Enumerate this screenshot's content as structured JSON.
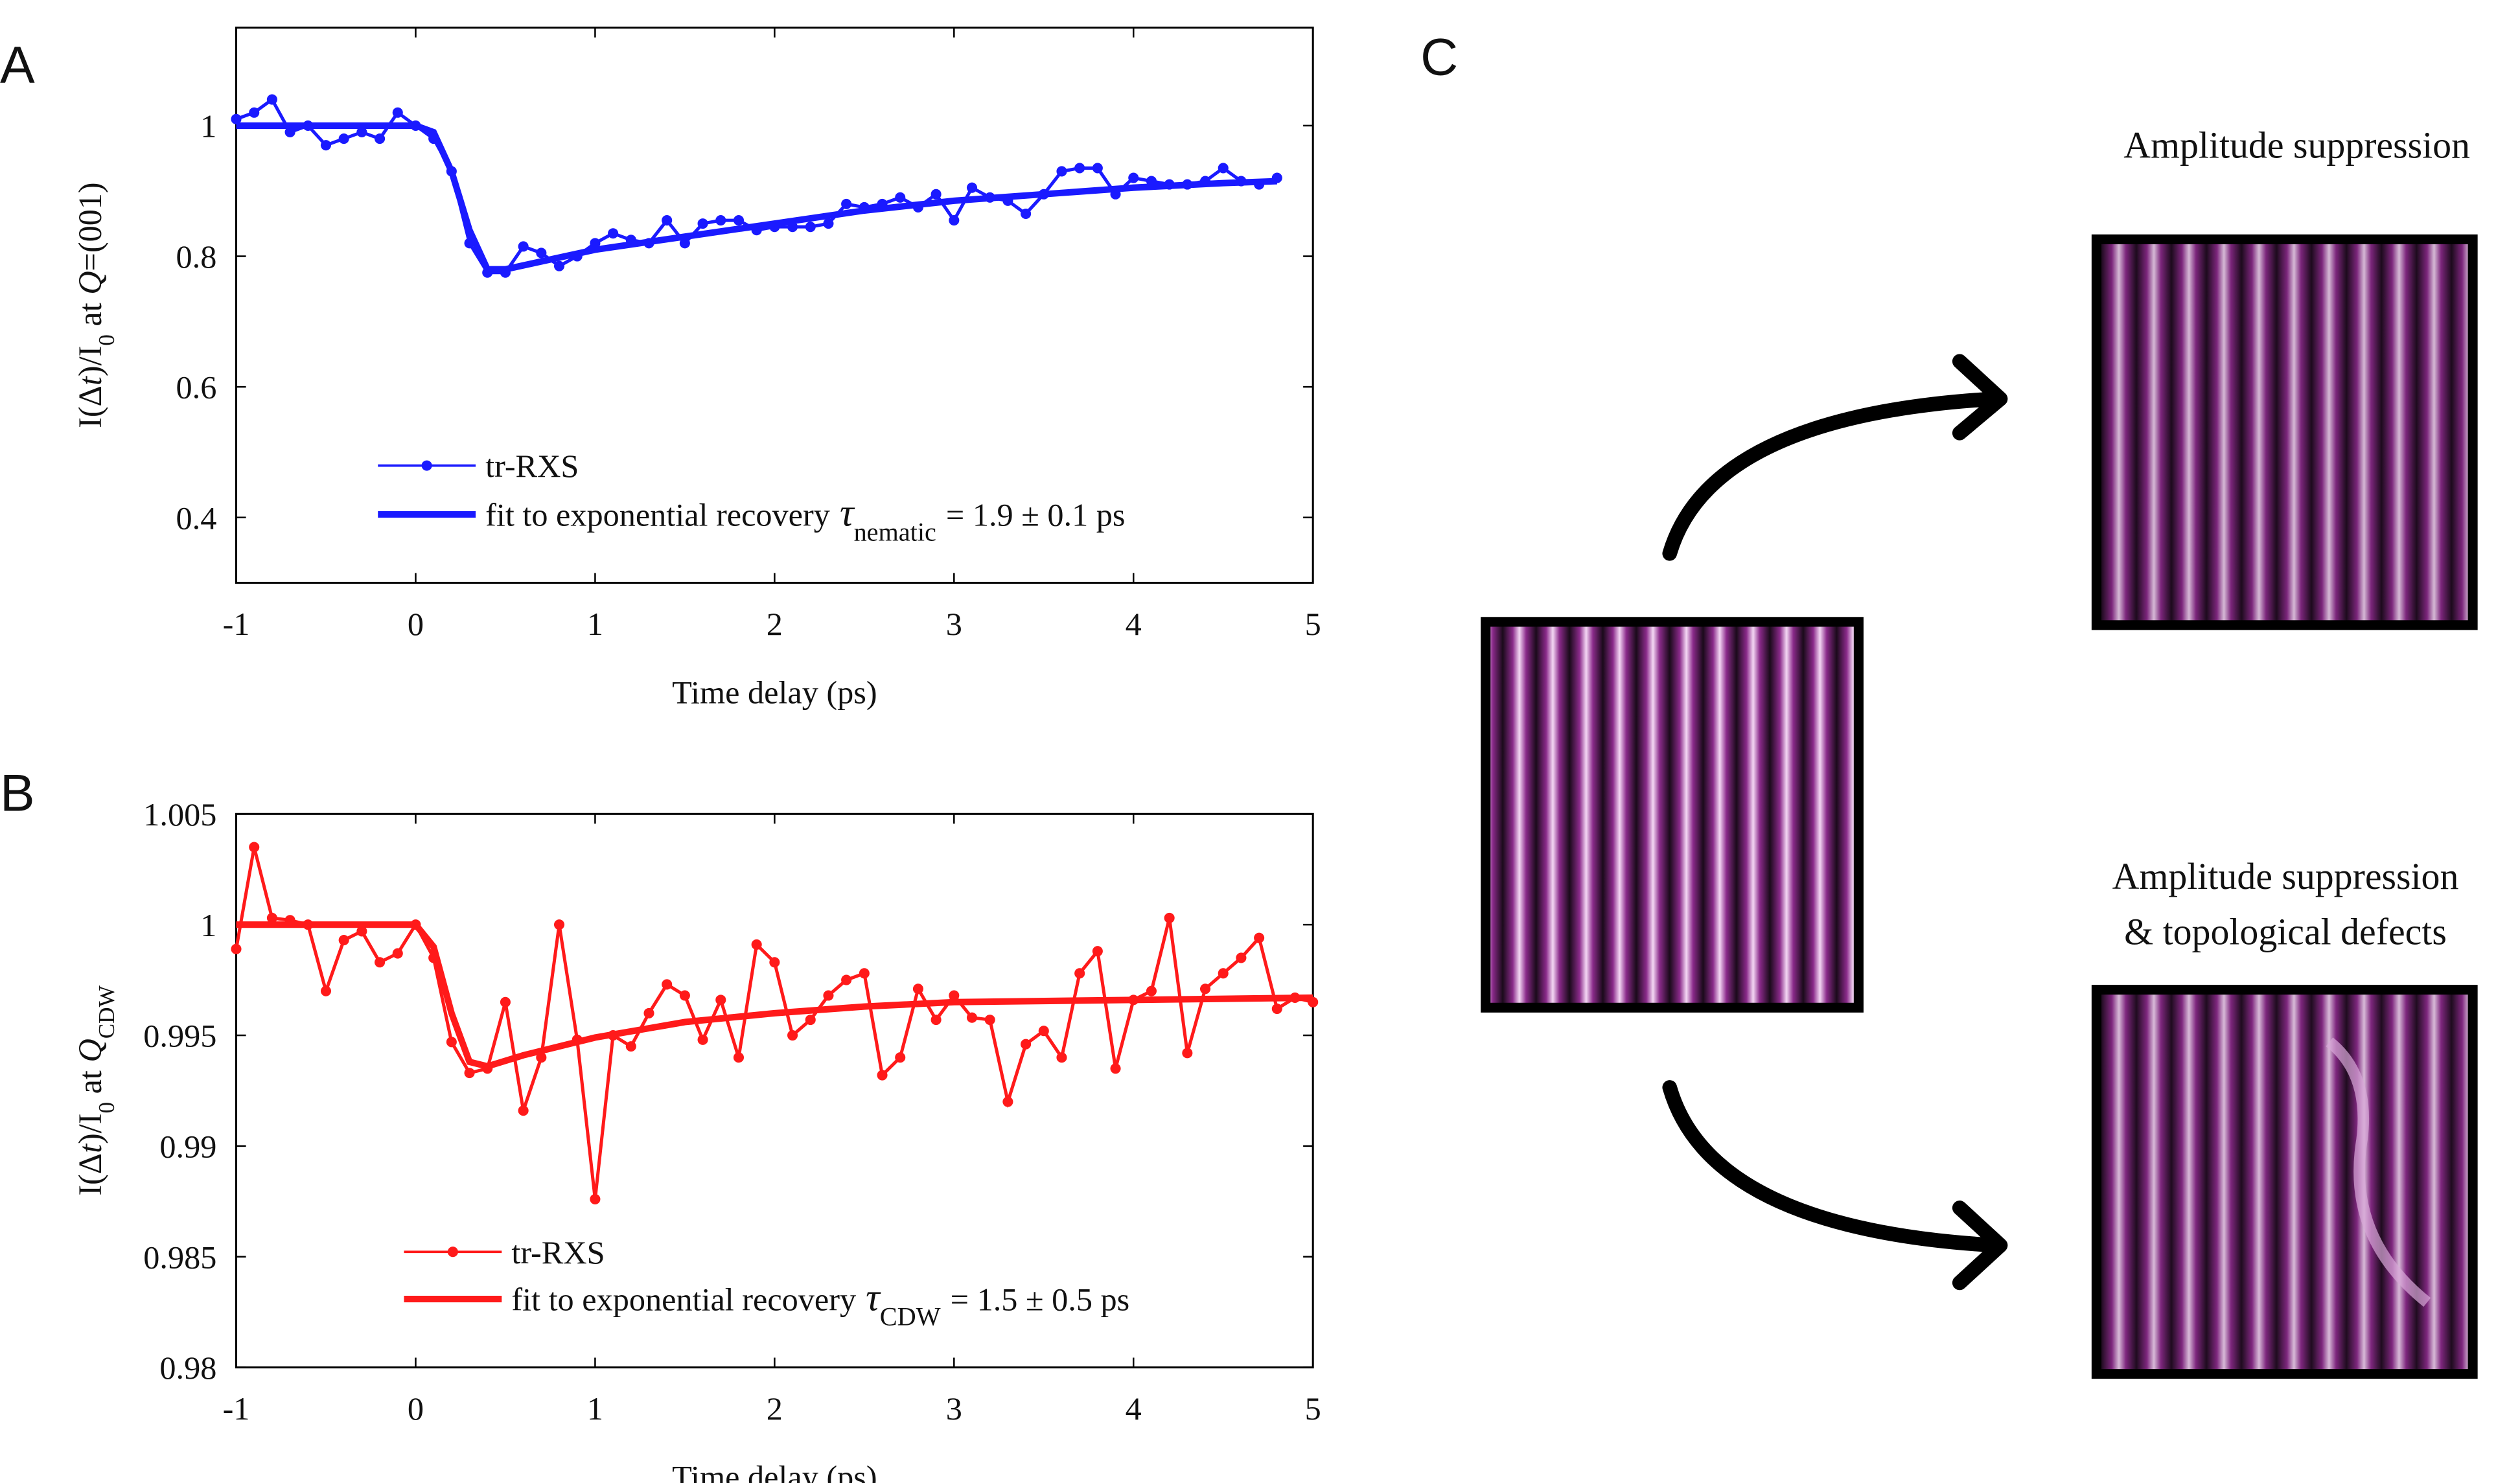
{
  "chart_data": [
    {
      "type": "line",
      "panel": "A",
      "xlabel": "Time delay (ps)",
      "ylabel": {
        "pre": "I(Δ",
        "var": "t",
        "mid": ")/I",
        "sub": "0",
        "at": " at ",
        "q": "Q",
        "post": "=(001)"
      },
      "xlim": [
        -1,
        5
      ],
      "xticks": [
        -1,
        0,
        1,
        2,
        3,
        4,
        5
      ],
      "ylim": [
        0.3,
        1.15
      ],
      "yticks": [
        0.4,
        0.6,
        0.8,
        1
      ],
      "fit_label": {
        "symbol": "τ",
        "subscript": "nematic",
        "value": "= 1.9 ± 0.1 ps"
      },
      "series": [
        {
          "name": "tr-RXS",
          "color": "#1a1aff",
          "markers": true,
          "x": [
            -1,
            -0.9,
            -0.8,
            -0.7,
            -0.6,
            -0.5,
            -0.4,
            -0.3,
            -0.2,
            -0.1,
            0,
            0.1,
            0.2,
            0.3,
            0.4,
            0.5,
            0.6,
            0.7,
            0.8,
            0.9,
            1,
            1.1,
            1.2,
            1.3,
            1.4,
            1.5,
            1.6,
            1.7,
            1.8,
            1.9,
            2,
            2.1,
            2.2,
            2.3,
            2.4,
            2.5,
            2.6,
            2.7,
            2.8,
            2.9,
            3,
            3.1,
            3.2,
            3.3,
            3.4,
            3.5,
            3.6,
            3.7,
            3.8,
            3.9,
            4,
            4.1,
            4.2,
            4.3,
            4.4,
            4.5,
            4.6,
            4.7,
            4.8
          ],
          "values": [
            1.01,
            1.02,
            1.04,
            0.99,
            1.0,
            0.97,
            0.98,
            0.99,
            0.98,
            1.02,
            1.0,
            0.98,
            0.93,
            0.82,
            0.775,
            0.775,
            0.815,
            0.805,
            0.785,
            0.8,
            0.82,
            0.835,
            0.825,
            0.82,
            0.855,
            0.82,
            0.85,
            0.855,
            0.855,
            0.84,
            0.845,
            0.845,
            0.845,
            0.85,
            0.88,
            0.875,
            0.88,
            0.89,
            0.875,
            0.895,
            0.855,
            0.905,
            0.89,
            0.885,
            0.865,
            0.895,
            0.93,
            0.935,
            0.935,
            0.895,
            0.92,
            0.915,
            0.91,
            0.91,
            0.915,
            0.935,
            0.915,
            0.91,
            0.92
          ]
        },
        {
          "name": "fit to exponential recovery",
          "color": "#1a1aff",
          "markers": false,
          "x": [
            -1,
            0,
            0.1,
            0.2,
            0.3,
            0.4,
            0.5,
            0.75,
            1,
            1.5,
            2,
            2.5,
            3,
            3.5,
            4,
            4.5,
            4.8
          ],
          "values": [
            1.0,
            1.0,
            0.99,
            0.93,
            0.84,
            0.78,
            0.78,
            0.795,
            0.81,
            0.83,
            0.85,
            0.87,
            0.885,
            0.895,
            0.905,
            0.912,
            0.915
          ]
        }
      ]
    },
    {
      "type": "line",
      "panel": "B",
      "xlabel": "Time delay (ps)",
      "ylabel": {
        "pre": "I(Δ",
        "var": "t",
        "mid": ")/I",
        "sub": "0",
        "at": " at ",
        "q": "Q",
        "q_sub": "CDW"
      },
      "xlim": [
        -1,
        5
      ],
      "xticks": [
        -1,
        0,
        1,
        2,
        3,
        4,
        5
      ],
      "ylim": [
        0.98,
        1.005
      ],
      "yticks": [
        0.98,
        0.985,
        0.99,
        0.995,
        1,
        1.005
      ],
      "fit_label": {
        "symbol": "τ",
        "subscript": "CDW",
        "value": "= 1.5 ± 0.5 ps"
      },
      "series": [
        {
          "name": "tr-RXS",
          "color": "#ff1a1a",
          "markers": true,
          "x": [
            -1,
            -0.9,
            -0.8,
            -0.7,
            -0.6,
            -0.5,
            -0.4,
            -0.3,
            -0.2,
            -0.1,
            0,
            0.1,
            0.2,
            0.3,
            0.4,
            0.5,
            0.6,
            0.7,
            0.8,
            0.9,
            1,
            1.1,
            1.2,
            1.3,
            1.4,
            1.5,
            1.6,
            1.7,
            1.8,
            1.9,
            2,
            2.1,
            2.2,
            2.3,
            2.4,
            2.5,
            2.6,
            2.7,
            2.8,
            2.9,
            3,
            3.1,
            3.2,
            3.3,
            3.4,
            3.5,
            3.6,
            3.7,
            3.8,
            3.9,
            4,
            4.1,
            4.2,
            4.3,
            4.4,
            4.5,
            4.6,
            4.7,
            4.8,
            4.9,
            5
          ],
          "values": [
            0.9989,
            1.0035,
            1.0003,
            1.0002,
            1.0,
            0.997,
            0.9993,
            0.9997,
            0.9983,
            0.9987,
            1.0,
            0.9985,
            0.9947,
            0.9933,
            0.9935,
            0.9965,
            0.9916,
            0.994,
            1.0,
            0.9948,
            0.9876,
            0.995,
            0.9945,
            0.996,
            0.9973,
            0.9968,
            0.9948,
            0.9966,
            0.994,
            0.9991,
            0.9983,
            0.995,
            0.9957,
            0.9968,
            0.9975,
            0.9978,
            0.9932,
            0.994,
            0.9971,
            0.9957,
            0.9968,
            0.9958,
            0.9957,
            0.992,
            0.9946,
            0.9952,
            0.994,
            0.9978,
            0.9988,
            0.9935,
            0.9966,
            0.997,
            1.0003,
            0.9942,
            0.9971,
            0.9978,
            0.9985,
            0.9994,
            0.9962,
            0.9967,
            0.9965
          ]
        },
        {
          "name": "fit to exponential recovery",
          "color": "#ff1a1a",
          "markers": false,
          "x": [
            -1,
            0,
            0.1,
            0.2,
            0.3,
            0.4,
            0.6,
            0.8,
            1,
            1.5,
            2,
            2.5,
            3,
            4,
            5
          ],
          "values": [
            1.0,
            1.0,
            0.999,
            0.996,
            0.9938,
            0.9936,
            0.9941,
            0.9945,
            0.9949,
            0.9956,
            0.996,
            0.9963,
            0.9965,
            0.9966,
            0.9967
          ]
        }
      ]
    }
  ],
  "panel_c": {
    "panel": "C",
    "top_caption": "Amplitude suppression",
    "bottom_caption": [
      "Amplitude suppression",
      "& topological defects"
    ]
  }
}
